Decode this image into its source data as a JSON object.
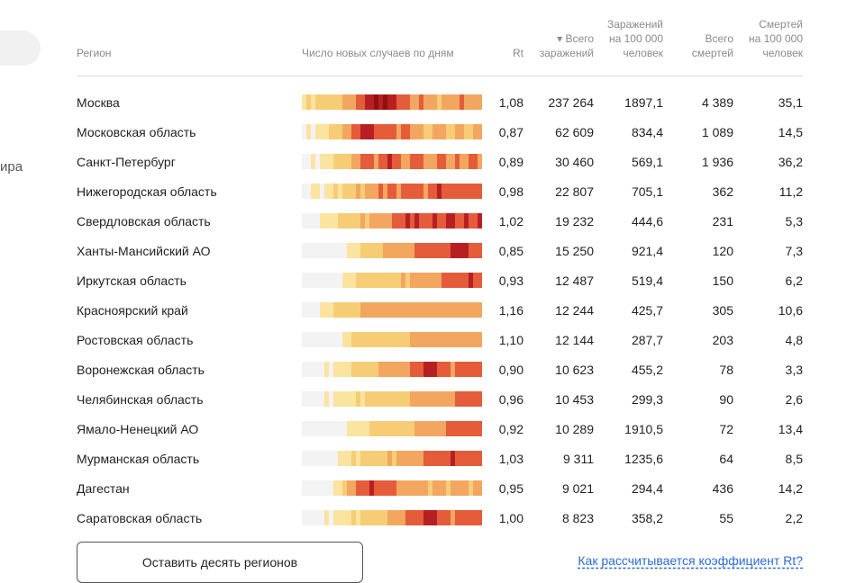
{
  "side": {
    "text": "ира"
  },
  "header": {
    "region": "Регион",
    "chart": "Число новых случаев по дням",
    "rt": "Rt",
    "total": [
      "▾ Всего",
      "заражений"
    ],
    "per100k": [
      "Заражений",
      "на 100 000",
      "человек"
    ],
    "deaths": [
      "Всего",
      "смертей"
    ],
    "deaths100k": [
      "Смертей",
      "на 100 000",
      "человек"
    ]
  },
  "rows": [
    {
      "name": "Москва",
      "rt": "1,08",
      "total": "237 264",
      "per100k": "1897,1",
      "deaths": "4 389",
      "deaths100k": "35,1"
    },
    {
      "name": "Московская область",
      "rt": "0,87",
      "total": "62 609",
      "per100k": "834,4",
      "deaths": "1 089",
      "deaths100k": "14,5"
    },
    {
      "name": "Санкт-Петербург",
      "rt": "0,89",
      "total": "30 460",
      "per100k": "569,1",
      "deaths": "1 936",
      "deaths100k": "36,2"
    },
    {
      "name": "Нижегородская область",
      "rt": "0,98",
      "total": "22 807",
      "per100k": "705,1",
      "deaths": "362",
      "deaths100k": "11,2"
    },
    {
      "name": "Свердловская область",
      "rt": "1,02",
      "total": "19 232",
      "per100k": "444,6",
      "deaths": "231",
      "deaths100k": "5,3"
    },
    {
      "name": "Ханты-Мансийский АО",
      "rt": "0,85",
      "total": "15 250",
      "per100k": "921,4",
      "deaths": "120",
      "deaths100k": "7,3"
    },
    {
      "name": "Иркутская область",
      "rt": "0,93",
      "total": "12 487",
      "per100k": "519,4",
      "deaths": "150",
      "deaths100k": "6,2"
    },
    {
      "name": "Красноярский край",
      "rt": "1,16",
      "total": "12 244",
      "per100k": "425,7",
      "deaths": "305",
      "deaths100k": "10,6"
    },
    {
      "name": "Ростовская область",
      "rt": "1,10",
      "total": "12 144",
      "per100k": "287,7",
      "deaths": "203",
      "deaths100k": "4,8"
    },
    {
      "name": "Воронежская область",
      "rt": "0,90",
      "total": "10 623",
      "per100k": "455,2",
      "deaths": "78",
      "deaths100k": "3,3"
    },
    {
      "name": "Челябинская область",
      "rt": "0,96",
      "total": "10 453",
      "per100k": "299,3",
      "deaths": "90",
      "deaths100k": "2,6"
    },
    {
      "name": "Ямало-Ненецкий АО",
      "rt": "0,92",
      "total": "10 289",
      "per100k": "1910,5",
      "deaths": "72",
      "deaths100k": "13,4"
    },
    {
      "name": "Мурманская область",
      "rt": "1,03",
      "total": "9 311",
      "per100k": "1235,6",
      "deaths": "64",
      "deaths100k": "8,5"
    },
    {
      "name": "Дагестан",
      "rt": "0,95",
      "total": "9 021",
      "per100k": "294,4",
      "deaths": "436",
      "deaths100k": "14,2"
    },
    {
      "name": "Саратовская область",
      "rt": "1,00",
      "total": "8 823",
      "per100k": "358,2",
      "deaths": "55",
      "deaths100k": "2,2"
    }
  ],
  "heat_profiles": [
    [
      1,
      2,
      1,
      2,
      2,
      2,
      2,
      2,
      2,
      3,
      3,
      3,
      4,
      4,
      5,
      5,
      6,
      5,
      6,
      5,
      5,
      4,
      4,
      4,
      3,
      3,
      4,
      3,
      3,
      3,
      2,
      3,
      3,
      3,
      3,
      4,
      3,
      3,
      3,
      3
    ],
    [
      0,
      1,
      0,
      1,
      1,
      1,
      2,
      2,
      2,
      3,
      3,
      4,
      4,
      5,
      5,
      5,
      4,
      4,
      4,
      4,
      4,
      3,
      4,
      4,
      3,
      3,
      3,
      2,
      2,
      3,
      3,
      3,
      2,
      2,
      3,
      3,
      2,
      2,
      3,
      3
    ],
    [
      0,
      0,
      1,
      0,
      1,
      1,
      1,
      2,
      2,
      2,
      2,
      3,
      3,
      4,
      4,
      4,
      3,
      4,
      4,
      5,
      4,
      4,
      3,
      3,
      4,
      4,
      4,
      3,
      3,
      3,
      4,
      4,
      3,
      3,
      4,
      3,
      3,
      4,
      4,
      3
    ],
    [
      0,
      0,
      1,
      1,
      0,
      1,
      1,
      2,
      1,
      2,
      2,
      2,
      3,
      2,
      3,
      3,
      3,
      4,
      3,
      4,
      4,
      3,
      4,
      4,
      4,
      4,
      4,
      3,
      4,
      4,
      5,
      4,
      4,
      4,
      4,
      4,
      4,
      4,
      4,
      4
    ],
    [
      0,
      0,
      0,
      0,
      1,
      1,
      1,
      1,
      2,
      2,
      2,
      2,
      2,
      3,
      2,
      3,
      3,
      3,
      3,
      3,
      4,
      4,
      4,
      5,
      4,
      5,
      4,
      4,
      4,
      5,
      4,
      4,
      5,
      5,
      4,
      4,
      5,
      4,
      4,
      5
    ],
    [
      0,
      0,
      0,
      0,
      0,
      0,
      0,
      0,
      0,
      0,
      1,
      1,
      1,
      2,
      2,
      2,
      2,
      2,
      3,
      3,
      3,
      3,
      3,
      3,
      3,
      4,
      4,
      4,
      4,
      4,
      4,
      4,
      4,
      5,
      5,
      5,
      5,
      4,
      4,
      4
    ],
    [
      0,
      0,
      0,
      0,
      0,
      0,
      0,
      0,
      0,
      1,
      1,
      1,
      2,
      2,
      2,
      2,
      2,
      2,
      2,
      2,
      2,
      2,
      3,
      2,
      3,
      3,
      3,
      3,
      3,
      3,
      3,
      4,
      4,
      4,
      4,
      4,
      4,
      5,
      4,
      4
    ],
    [
      0,
      0,
      0,
      0,
      1,
      1,
      1,
      2,
      2,
      2,
      2,
      2,
      2,
      3,
      3,
      3,
      3,
      3,
      3,
      3,
      3,
      3,
      3,
      3,
      3,
      3,
      3,
      3,
      3,
      3,
      3,
      3,
      3,
      3,
      3,
      3,
      3,
      3,
      3,
      3
    ],
    [
      0,
      0,
      0,
      0,
      0,
      0,
      0,
      0,
      0,
      1,
      1,
      2,
      2,
      2,
      2,
      2,
      2,
      2,
      2,
      2,
      2,
      2,
      2,
      2,
      3,
      3,
      3,
      3,
      3,
      3,
      3,
      3,
      3,
      3,
      3,
      3,
      3,
      3,
      3,
      3
    ],
    [
      0,
      0,
      0,
      0,
      0,
      1,
      0,
      1,
      1,
      1,
      1,
      2,
      2,
      2,
      2,
      2,
      2,
      3,
      3,
      3,
      3,
      3,
      3,
      3,
      4,
      4,
      4,
      5,
      5,
      5,
      4,
      4,
      4,
      3,
      4,
      4,
      4,
      4,
      4,
      4
    ],
    [
      0,
      0,
      0,
      0,
      0,
      1,
      0,
      1,
      1,
      1,
      1,
      1,
      2,
      1,
      2,
      2,
      2,
      2,
      2,
      2,
      2,
      2,
      2,
      2,
      3,
      3,
      3,
      3,
      3,
      3,
      3,
      3,
      3,
      3,
      4,
      4,
      4,
      4,
      4,
      4
    ],
    [
      0,
      0,
      0,
      0,
      0,
      0,
      0,
      0,
      0,
      0,
      1,
      1,
      1,
      1,
      1,
      2,
      2,
      2,
      2,
      2,
      2,
      2,
      2,
      2,
      2,
      3,
      3,
      3,
      3,
      3,
      3,
      3,
      4,
      4,
      4,
      4,
      4,
      4,
      4,
      4
    ],
    [
      0,
      0,
      0,
      0,
      0,
      0,
      0,
      0,
      1,
      1,
      1,
      2,
      1,
      2,
      2,
      2,
      2,
      2,
      2,
      3,
      2,
      3,
      3,
      3,
      3,
      3,
      3,
      4,
      4,
      4,
      4,
      4,
      4,
      5,
      4,
      4,
      4,
      4,
      4,
      4
    ],
    [
      0,
      0,
      0,
      0,
      0,
      0,
      0,
      1,
      1,
      2,
      3,
      3,
      4,
      4,
      4,
      5,
      4,
      4,
      4,
      4,
      4,
      3,
      3,
      3,
      3,
      3,
      3,
      3,
      2,
      3,
      3,
      3,
      2,
      3,
      3,
      3,
      3,
      2,
      3,
      3
    ],
    [
      0,
      0,
      0,
      0,
      0,
      1,
      0,
      1,
      1,
      1,
      1,
      2,
      1,
      2,
      2,
      2,
      2,
      2,
      2,
      3,
      3,
      3,
      3,
      4,
      4,
      4,
      4,
      5,
      5,
      5,
      4,
      4,
      4,
      3,
      4,
      4,
      4,
      4,
      4,
      4
    ]
  ],
  "heat_colors": [
    "#f3f3f3",
    "#fbe3a0",
    "#f6cd75",
    "#f3a660",
    "#e45c3a",
    "#b81f22",
    "#8e1010"
  ],
  "footer": {
    "button": "Оставить десять регионов",
    "link": "Как рассчитывается коэффициент Rt?"
  }
}
